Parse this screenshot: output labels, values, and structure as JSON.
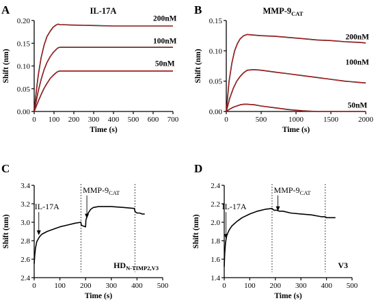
{
  "figure": {
    "background": "#ffffff",
    "axis_color": "#000000",
    "line_color": "#000000",
    "fit_color": "#d21e1e"
  },
  "chart_data": [
    {
      "panel_letter": "A",
      "type": "line",
      "title": "IL-17A",
      "title_sub": "",
      "xlabel": "Time (s)",
      "ylabel": "Shift (nm)",
      "xlim": [
        0,
        700
      ],
      "ylim": [
        0,
        0.2
      ],
      "xticks": [
        0,
        100,
        200,
        300,
        400,
        500,
        600,
        700
      ],
      "yticks": [
        0.0,
        0.05,
        0.1,
        0.15,
        0.2
      ],
      "ytick_labels": [
        "0.00",
        "0.05",
        "0.10",
        "0.15",
        "0.20"
      ],
      "has_fit": true,
      "vlines": [],
      "arrows": [],
      "series": [
        {
          "name": "200nM",
          "x": [
            0,
            10,
            20,
            35,
            50,
            65,
            80,
            95,
            110,
            120,
            130,
            200,
            300,
            400,
            500,
            600,
            700
          ],
          "y": [
            0.0,
            0.042,
            0.078,
            0.118,
            0.146,
            0.165,
            0.176,
            0.185,
            0.19,
            0.192,
            0.191,
            0.19,
            0.189,
            0.188,
            0.188,
            0.188,
            0.188
          ]
        },
        {
          "name": "100nM",
          "x": [
            0,
            10,
            20,
            35,
            50,
            65,
            80,
            95,
            110,
            120,
            130,
            200,
            300,
            400,
            500,
            600,
            700
          ],
          "y": [
            0.0,
            0.022,
            0.044,
            0.07,
            0.092,
            0.108,
            0.12,
            0.129,
            0.136,
            0.14,
            0.141,
            0.141,
            0.141,
            0.141,
            0.141,
            0.141,
            0.141
          ]
        },
        {
          "name": "50nM",
          "x": [
            0,
            10,
            20,
            35,
            50,
            65,
            80,
            95,
            110,
            120,
            130,
            200,
            300,
            400,
            500,
            600,
            700
          ],
          "y": [
            0.0,
            0.011,
            0.022,
            0.037,
            0.051,
            0.062,
            0.072,
            0.079,
            0.085,
            0.088,
            0.089,
            0.089,
            0.089,
            0.089,
            0.089,
            0.089,
            0.089
          ]
        }
      ],
      "annotations": [
        {
          "text": "200nM",
          "x": 600,
          "y": 0.199
        },
        {
          "text": "100nM",
          "x": 600,
          "y": 0.15
        },
        {
          "text": "50nM",
          "x": 610,
          "y": 0.1
        }
      ],
      "corner_label": "",
      "corner_sub": ""
    },
    {
      "panel_letter": "B",
      "type": "line",
      "title": "MMP-9",
      "title_sub": "CAT",
      "xlabel": "Time (s)",
      "ylabel": "Shift (nm)",
      "xlim": [
        0,
        2000
      ],
      "ylim": [
        0,
        0.15
      ],
      "xticks": [
        0,
        500,
        1000,
        1500,
        2000
      ],
      "yticks": [
        0.0,
        0.05,
        0.1,
        0.15
      ],
      "ytick_labels": [
        "0.00",
        "0.05",
        "0.10",
        "0.15"
      ],
      "has_fit": true,
      "vlines": [],
      "arrows": [],
      "series": [
        {
          "name": "200nM",
          "x": [
            0,
            40,
            80,
            120,
            160,
            200,
            250,
            300,
            400,
            500,
            700,
            900,
            1100,
            1300,
            1500,
            1700,
            1900,
            2000
          ],
          "y": [
            0.0,
            0.05,
            0.08,
            0.1,
            0.112,
            0.12,
            0.125,
            0.127,
            0.126,
            0.125,
            0.124,
            0.122,
            0.12,
            0.118,
            0.117,
            0.115,
            0.114,
            0.113
          ]
        },
        {
          "name": "100nM",
          "x": [
            0,
            50,
            100,
            150,
            200,
            250,
            300,
            400,
            500,
            700,
            900,
            1100,
            1300,
            1500,
            1700,
            1900,
            2000
          ],
          "y": [
            0.0,
            0.022,
            0.038,
            0.05,
            0.058,
            0.064,
            0.068,
            0.069,
            0.068,
            0.065,
            0.062,
            0.059,
            0.056,
            0.053,
            0.05,
            0.048,
            0.047
          ]
        },
        {
          "name": "50nM",
          "x": [
            0,
            50,
            100,
            150,
            200,
            250,
            300,
            400,
            500,
            700,
            900,
            1100,
            1300,
            1500,
            1700,
            1900,
            2000
          ],
          "y": [
            0.0,
            0.004,
            0.007,
            0.009,
            0.011,
            0.012,
            0.012,
            0.011,
            0.009,
            0.006,
            0.003,
            0.001,
            0.0,
            0.0,
            0.0,
            0.0,
            0.0
          ]
        }
      ],
      "annotations": [
        {
          "text": "200nM",
          "x": 1710,
          "y": 0.119
        },
        {
          "text": "100nM",
          "x": 1710,
          "y": 0.077
        },
        {
          "text": "50nM",
          "x": 1740,
          "y": 0.006
        }
      ],
      "corner_label": "",
      "corner_sub": ""
    },
    {
      "panel_letter": "C",
      "type": "line",
      "title": "",
      "title_sub": "",
      "xlabel": "Time (s)",
      "ylabel": "Shift (nm)",
      "xlim": [
        0,
        500
      ],
      "ylim": [
        2.4,
        3.4
      ],
      "xticks": [
        0,
        100,
        200,
        300,
        400,
        500
      ],
      "yticks": [
        2.4,
        2.6,
        2.8,
        3.0,
        3.2,
        3.4
      ],
      "ytick_labels": [
        "2.4",
        "2.6",
        "2.8",
        "3.0",
        "3.2",
        "3.4"
      ],
      "has_fit": false,
      "vlines": [
        182,
        392
      ],
      "arrows": [
        {
          "text": "IL-17A",
          "text_sub": "",
          "x": 18,
          "y": 2.86,
          "label_y": 3.14
        },
        {
          "text": "MMP-9",
          "text_sub": "CAT",
          "x": 205,
          "y": 3.04,
          "label_y": 3.32
        }
      ],
      "series": [
        {
          "name": "",
          "x": [
            0,
            2,
            5,
            10,
            20,
            30,
            50,
            70,
            100,
            130,
            160,
            182,
            183,
            190,
            200,
            201,
            205,
            210,
            220,
            230,
            250,
            300,
            350,
            390,
            392,
            395,
            400,
            410,
            420,
            430
          ],
          "y": [
            2.55,
            2.64,
            2.72,
            2.79,
            2.84,
            2.87,
            2.9,
            2.92,
            2.95,
            2.97,
            2.99,
            3.0,
            2.97,
            2.96,
            2.95,
            3.02,
            3.06,
            3.1,
            3.14,
            3.16,
            3.17,
            3.17,
            3.16,
            3.15,
            3.12,
            3.11,
            3.1,
            3.1,
            3.09,
            3.09
          ]
        }
      ],
      "annotations": [],
      "corner_label": "HD",
      "corner_sub": "N-TIMP2,V3"
    },
    {
      "panel_letter": "D",
      "type": "line",
      "title": "",
      "title_sub": "",
      "xlabel": "Time (s)",
      "ylabel": "Shift (nm)",
      "xlim": [
        0,
        500
      ],
      "ylim": [
        1.4,
        2.4
      ],
      "xticks": [
        0,
        100,
        200,
        300,
        400,
        500
      ],
      "yticks": [
        1.4,
        1.6,
        1.8,
        2.0,
        2.2,
        2.4
      ],
      "ytick_labels": [
        "1.4",
        "1.6",
        "1.8",
        "2.0",
        "2.2",
        "2.4"
      ],
      "has_fit": false,
      "vlines": [
        187,
        395
      ],
      "arrows": [
        {
          "text": "IL-17A",
          "text_sub": "",
          "x": 7,
          "y": 1.82,
          "label_y": 2.14
        },
        {
          "text": "MMP-9",
          "text_sub": "CAT",
          "x": 210,
          "y": 2.12,
          "label_y": 2.32
        }
      ],
      "series": [
        {
          "name": "",
          "x": [
            0,
            2,
            5,
            10,
            20,
            30,
            50,
            70,
            100,
            130,
            160,
            187,
            190,
            195,
            205,
            215,
            230,
            260,
            300,
            340,
            380,
            395,
            400,
            420,
            435
          ],
          "y": [
            1.52,
            1.66,
            1.78,
            1.86,
            1.92,
            1.96,
            2.01,
            2.05,
            2.09,
            2.12,
            2.14,
            2.15,
            2.14,
            2.13,
            2.13,
            2.12,
            2.12,
            2.1,
            2.09,
            2.08,
            2.06,
            2.06,
            2.05,
            2.05,
            2.05
          ]
        }
      ],
      "annotations": [],
      "corner_label": "V3",
      "corner_sub": ""
    }
  ]
}
